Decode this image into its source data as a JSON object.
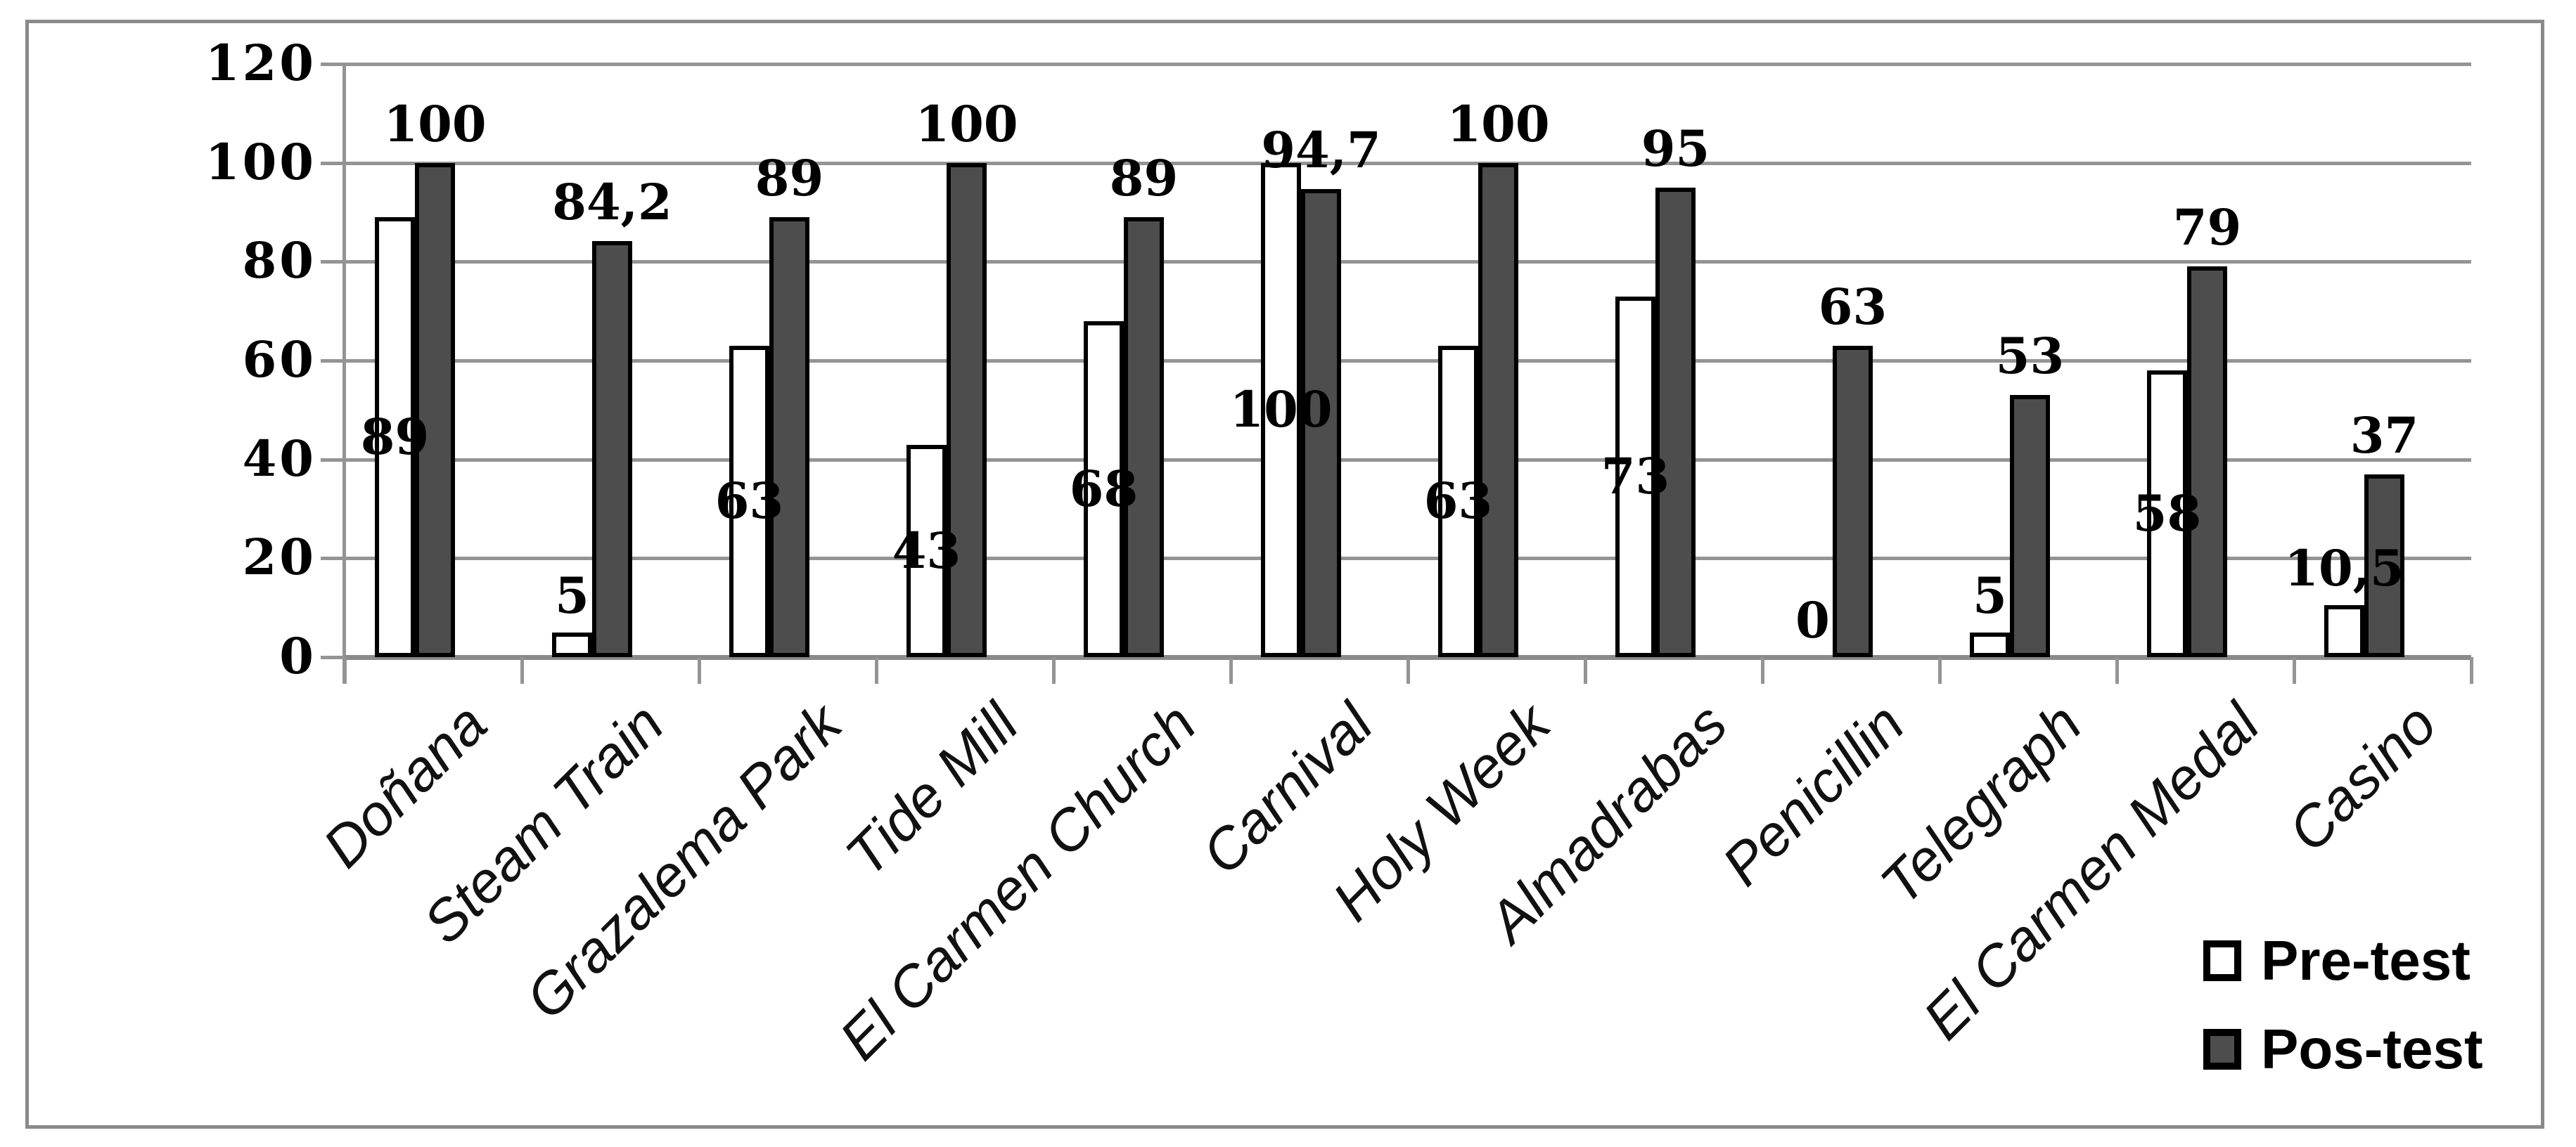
{
  "chart_data": {
    "type": "bar",
    "title": "",
    "xlabel": "",
    "ylabel": "",
    "ylim": [
      0,
      120
    ],
    "yticks": [
      "0",
      "20",
      "40",
      "60",
      "80",
      "100",
      "120"
    ],
    "grid": true,
    "legend_position": "bottom-right",
    "categories": [
      "Doñana",
      "Steam Train",
      "Grazalema Park",
      "Tide Mill",
      "El Carmen Church",
      "Carnival",
      "Holy Week",
      "Almadrabas",
      "Penicillin",
      "Telegraph",
      "El Carmen Medal",
      "Casino"
    ],
    "series": [
      {
        "name": "Pre-test",
        "values": [
          89,
          5,
          63,
          43,
          68,
          100,
          63,
          73,
          0,
          5,
          58,
          10.5
        ],
        "labels": [
          "89",
          "5",
          "63",
          "43",
          "68",
          "100",
          "63",
          "73",
          "0",
          "5",
          "58",
          "10,5"
        ]
      },
      {
        "name": "Pos-test",
        "values": [
          100,
          84.2,
          89,
          100,
          89,
          94.7,
          100,
          95,
          63,
          53,
          79,
          37
        ],
        "labels": [
          "100",
          "84,2",
          "89",
          "100",
          "89",
          "94,7",
          "100",
          "95",
          "63",
          "53",
          "79",
          "37"
        ]
      }
    ]
  },
  "colors": {
    "pretest_fill": "#ffffff",
    "postest_fill": "#4d4d4d",
    "bar_border": "#000000",
    "gridline": "#949494",
    "frame_border": "#8a8a8a",
    "text": "#000000"
  }
}
